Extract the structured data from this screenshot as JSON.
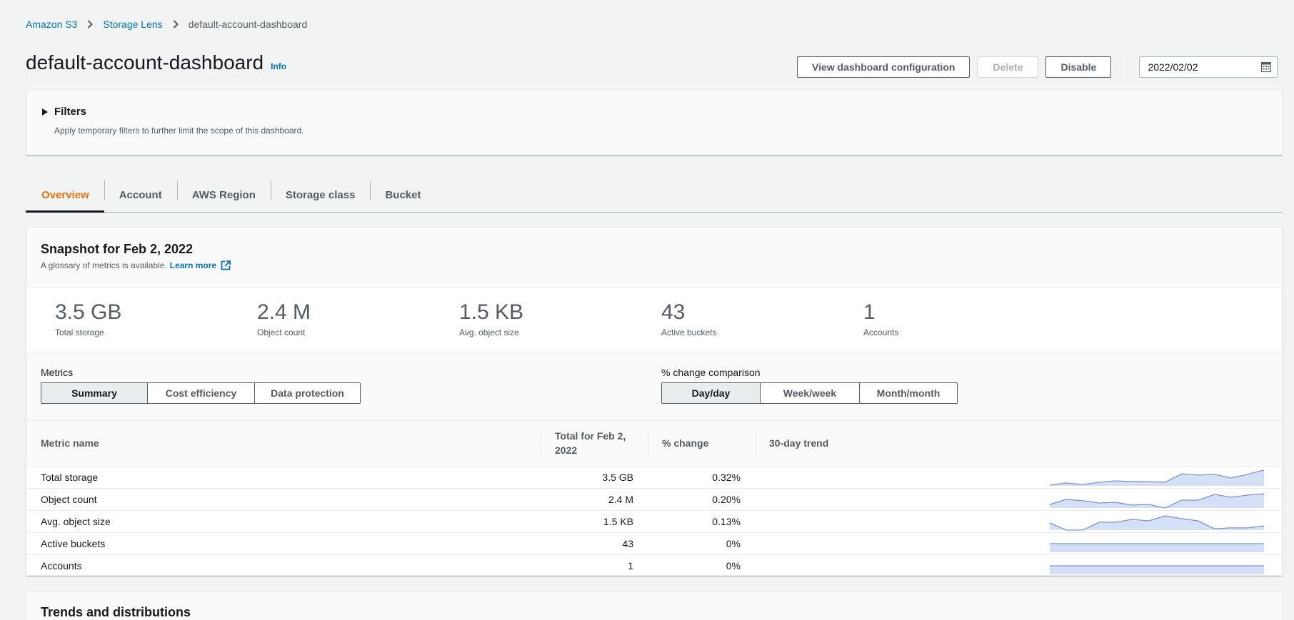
{
  "breadcrumb": {
    "items": [
      {
        "label": "Amazon S3"
      },
      {
        "label": "Storage Lens"
      }
    ],
    "current": "default-account-dashboard"
  },
  "header": {
    "title": "default-account-dashboard",
    "info_label": "Info",
    "actions": {
      "view_config": "View dashboard configuration",
      "delete": "Delete",
      "disable": "Disable"
    },
    "date_value": "2022/02/02",
    "date_icon": "calendar-icon"
  },
  "filters": {
    "title": "Filters",
    "description": "Apply temporary filters to further limit the scope of this dashboard.",
    "expanded": false
  },
  "tabs": [
    {
      "label": "Overview",
      "active": true
    },
    {
      "label": "Account"
    },
    {
      "label": "AWS Region"
    },
    {
      "label": "Storage class"
    },
    {
      "label": "Bucket"
    }
  ],
  "snapshot": {
    "title": "Snapshot for Feb 2, 2022",
    "subtitle": "A glossary of metrics is available.",
    "learn_more": "Learn more",
    "kpis": [
      {
        "value": "3.5 GB",
        "label": "Total storage"
      },
      {
        "value": "2.4 M",
        "label": "Object count"
      },
      {
        "value": "1.5 KB",
        "label": "Avg. object size"
      },
      {
        "value": "43",
        "label": "Active buckets"
      },
      {
        "value": "1",
        "label": "Accounts"
      }
    ],
    "metrics_control": {
      "label": "Metrics",
      "options": [
        "Summary",
        "Cost efficiency",
        "Data protection"
      ],
      "selected": "Summary"
    },
    "comparison_control": {
      "label": "% change comparison",
      "options": [
        "Day/day",
        "Week/week",
        "Month/month"
      ],
      "selected": "Day/day"
    },
    "table": {
      "columns": [
        "Metric name",
        "Total for Feb 2, 2022",
        "% change",
        "30-day trend"
      ],
      "rows": [
        {
          "name": "Total storage",
          "total": "3.5 GB",
          "change": "0.32%",
          "trend": [
            4,
            17,
            8,
            21,
            29,
            25,
            25,
            21,
            71,
            63,
            67,
            46,
            67,
            92
          ]
        },
        {
          "name": "Object count",
          "total": "2.4 M",
          "change": "0.20%",
          "trend": [
            21,
            50,
            42,
            29,
            33,
            17,
            21,
            0,
            46,
            46,
            79,
            63,
            75,
            83
          ]
        },
        {
          "name": "Avg. object size",
          "total": "1.5 KB",
          "change": "0.13%",
          "trend": [
            42,
            0,
            0,
            46,
            46,
            63,
            54,
            83,
            67,
            54,
            8,
            13,
            13,
            25
          ]
        },
        {
          "name": "Active buckets",
          "total": "43",
          "change": "0%",
          "trend": [
            50,
            50,
            50,
            50,
            50,
            50,
            50,
            50,
            50,
            50,
            50,
            50,
            50,
            50
          ]
        },
        {
          "name": "Accounts",
          "total": "1",
          "change": "0%",
          "trend": [
            50,
            50,
            50,
            50,
            50,
            50,
            50,
            50,
            50,
            50,
            50,
            50,
            50,
            50
          ]
        }
      ]
    }
  },
  "trends": {
    "title": "Trends and distributions"
  },
  "colors": {
    "link": "#0073bb",
    "active_tab": "#ec7211",
    "spark_line": "#7b93d4",
    "spark_fill": "#d5dff6",
    "text_primary": "#16191f",
    "text_secondary": "#545b64"
  }
}
